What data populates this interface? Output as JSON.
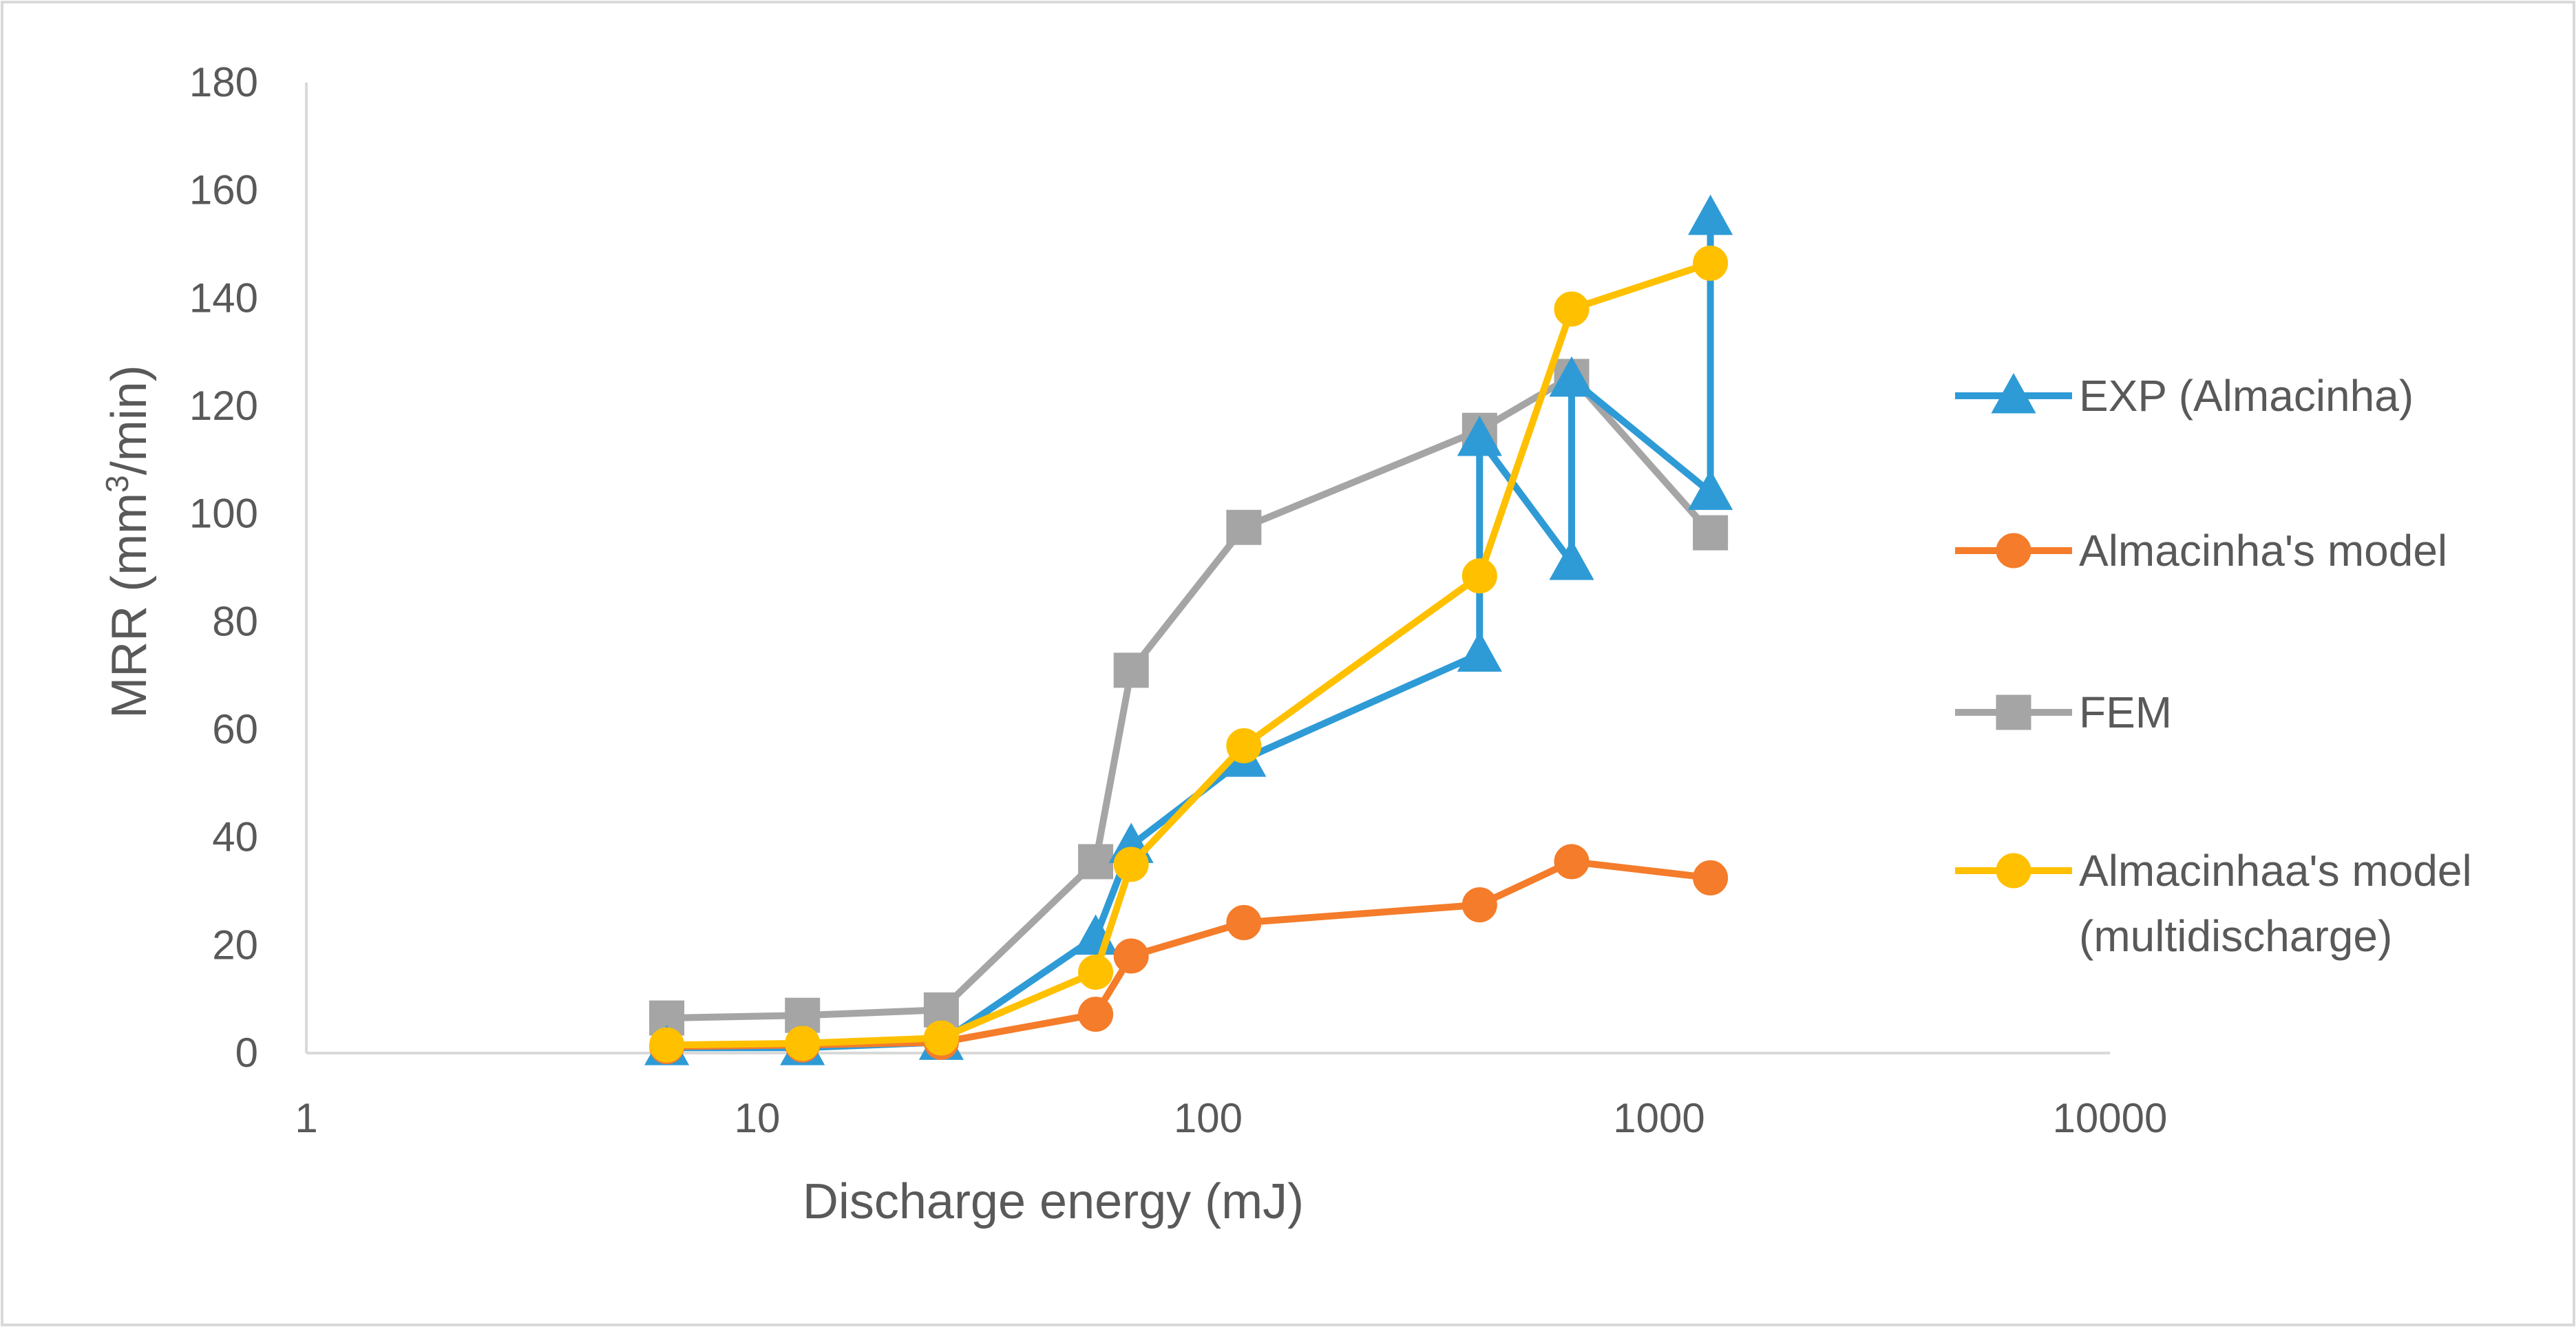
{
  "chart_data": {
    "type": "line",
    "title": "",
    "xlabel": "Discharge energy (mJ)",
    "ylabel_main": "MRR (mm",
    "ylabel_sup": "3",
    "ylabel_tail": "/min)",
    "x_scale": "log",
    "xlim": [
      1,
      10000
    ],
    "ylim": [
      0,
      180
    ],
    "x_ticks": [
      1,
      10,
      100,
      1000,
      10000
    ],
    "x_tick_labels": [
      "1",
      "10",
      "100",
      "1000",
      "10000"
    ],
    "y_ticks": [
      0,
      20,
      40,
      60,
      80,
      100,
      120,
      140,
      160,
      180
    ],
    "y_tick_labels": [
      "0",
      "20",
      "40",
      "60",
      "80",
      "100",
      "120",
      "140",
      "160",
      "180"
    ],
    "grid": false,
    "legend_position": "right",
    "series": [
      {
        "name": "EXP (Almacinha)",
        "legend_lines": [
          "EXP (Almacinha)"
        ],
        "color": "#2E9BD6",
        "marker": "triangle",
        "x": [
          6.3,
          12.6,
          25.6,
          56.3,
          67.5,
          120,
          400,
          400,
          640,
          640,
          1300,
          1300
        ],
        "y": [
          1,
          1,
          2,
          21.5,
          38.5,
          54.5,
          74,
          114,
          91,
          125,
          104,
          155
        ]
      },
      {
        "name": "Almacinha's model",
        "legend_lines": [
          "Almacinha's model"
        ],
        "color": "#F47C2A",
        "marker": "circle",
        "x": [
          6.3,
          12.6,
          25.6,
          56.3,
          67.5,
          120,
          400,
          640,
          1300
        ],
        "y": [
          1.2,
          1.5,
          2,
          7.2,
          18,
          24.2,
          27.5,
          35.5,
          32.5
        ]
      },
      {
        "name": "FEM",
        "legend_lines": [
          "FEM"
        ],
        "color": "#A5A5A5",
        "marker": "square",
        "x": [
          6.3,
          12.6,
          25.6,
          56.3,
          67.5,
          120,
          400,
          640,
          1300
        ],
        "y": [
          6.5,
          7,
          8,
          35.5,
          71,
          97.5,
          115.5,
          125.5,
          96.5
        ]
      },
      {
        "name": "Almacinhaa's model (multidischarge)",
        "legend_lines": [
          "Almacinhaa's model",
          "(multidischarge)"
        ],
        "color": "#FFC000",
        "marker": "circle",
        "x": [
          6.3,
          12.6,
          25.6,
          56.3,
          67.5,
          120,
          400,
          640,
          1300
        ],
        "y": [
          1.5,
          1.8,
          2.8,
          15,
          35,
          57,
          88.5,
          138,
          146.5
        ]
      }
    ]
  }
}
